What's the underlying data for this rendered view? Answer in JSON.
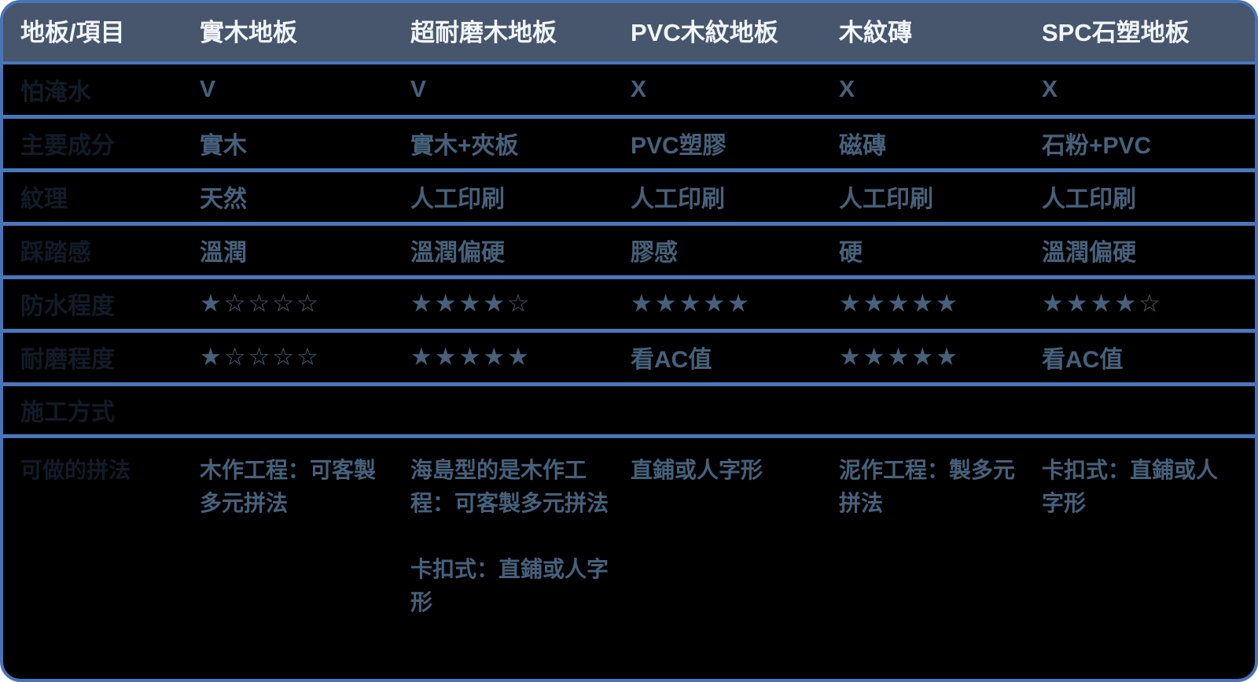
{
  "colors": {
    "header_bg": "#47566d",
    "header_text": "#f2f5f9",
    "body_bg": "#000000",
    "divider": "#4a77bb",
    "border": "#4a74b8",
    "cell_text": "#46617b",
    "label_text": "#121b28"
  },
  "table": {
    "columns": [
      "地板/項目",
      "實木地板",
      "超耐磨木地板",
      "PVC木紋地板",
      "木紋磚",
      "SPC石塑地板"
    ],
    "rows": [
      {
        "label": "怕淹水",
        "cells": [
          "V",
          "V",
          "X",
          "X",
          "X"
        ]
      },
      {
        "label": "主要成分",
        "cells": [
          "實木",
          "實木+夾板",
          "PVC塑膠",
          "磁磚",
          "石粉+PVC"
        ]
      },
      {
        "label": "紋理",
        "cells": [
          "天然",
          "人工印刷",
          "人工印刷",
          "人工印刷",
          "人工印刷"
        ]
      },
      {
        "label": "踩踏感",
        "cells": [
          "溫潤",
          "溫潤偏硬",
          "膠感",
          "硬",
          "溫潤偏硬"
        ]
      },
      {
        "label": "防水程度",
        "cells": [
          "★☆☆☆☆",
          "★★★★☆",
          "★★★★★",
          "★★★★★",
          "★★★★☆"
        ]
      },
      {
        "label": "耐磨程度",
        "cells": [
          "★☆☆☆☆",
          "★★★★★",
          "看AC值",
          "★★★★★",
          "看AC值"
        ]
      },
      {
        "label": "施工方式",
        "cells": [
          "",
          "",
          "",
          "",
          ""
        ]
      },
      {
        "label": "可做的拼法",
        "cells": [
          "木作工程：可客製多元拼法",
          "海島型的是木作工程：可客製多元拼法\n\n卡扣式：直鋪或人字形",
          "直鋪或人字形",
          "泥作工程：製多元拼法",
          "卡扣式：直鋪或人字形"
        ]
      }
    ]
  }
}
